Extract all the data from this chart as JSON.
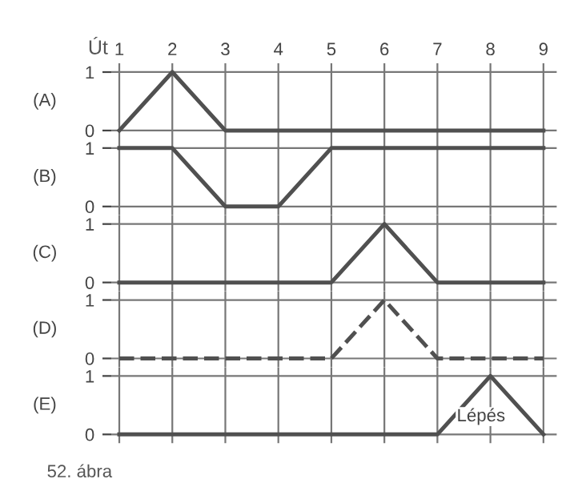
{
  "chart_data": [
    {
      "type": "line",
      "xlabel": "Út",
      "ylabel": "(A)",
      "x": [
        1,
        2,
        3,
        4,
        5,
        6,
        7,
        8,
        9
      ],
      "series": [
        {
          "color": "#505050",
          "values": [
            0,
            1,
            0,
            0,
            0,
            0,
            0,
            0,
            0
          ]
        }
      ],
      "xlim": [
        0.85,
        9.25
      ],
      "xticks": [
        1,
        2,
        3,
        4,
        5,
        6,
        7,
        8,
        9
      ],
      "ylim": [
        -0.15,
        1.15
      ],
      "yticks": [
        0,
        1
      ],
      "grid": true,
      "line_style": "solid",
      "marker": "none"
    },
    {
      "type": "line",
      "ylabel": "(B)",
      "x": [
        1,
        2,
        3,
        4,
        5,
        6,
        7,
        8,
        9
      ],
      "series": [
        {
          "color": "#505050",
          "values": [
            1,
            1,
            0,
            0,
            1,
            1,
            1,
            1,
            1
          ]
        }
      ],
      "xlim": [
        0.85,
        9.25
      ],
      "ylim": [
        -0.15,
        1.15
      ],
      "yticks": [
        0,
        1
      ],
      "tick_labels": "y",
      "grid": true,
      "line_style": "solid",
      "marker": "none"
    },
    {
      "type": "line",
      "ylabel": "(C)",
      "x": [
        1,
        2,
        3,
        4,
        5,
        6,
        7,
        8,
        9
      ],
      "series": [
        {
          "color": "#505050",
          "values": [
            0,
            0,
            0,
            0,
            0,
            1,
            0,
            0,
            0
          ]
        }
      ],
      "xlim": [
        0.85,
        9.25
      ],
      "ylim": [
        -0.15,
        1.15
      ],
      "yticks": [
        0,
        1
      ],
      "tick_labels": "y",
      "grid": true,
      "line_style": "solid",
      "marker": "none"
    },
    {
      "type": "line",
      "ylabel": "(D)",
      "x": [
        1,
        2,
        3,
        4,
        5,
        6,
        7,
        8,
        9
      ],
      "series": [
        {
          "color": "#505050",
          "values": [
            0,
            0,
            0,
            0,
            0,
            1,
            0,
            0,
            0
          ]
        }
      ],
      "xlim": [
        0.85,
        9.25
      ],
      "ylim": [
        -0.15,
        1.15
      ],
      "yticks": [
        0,
        1
      ],
      "tick_labels": "y",
      "grid": true,
      "line_style": "dashed",
      "marker": "none"
    },
    {
      "type": "line",
      "ylabel": "(E)",
      "x": [
        1,
        2,
        3,
        4,
        5,
        6,
        7,
        8,
        9
      ],
      "series": [
        {
          "color": "#505050",
          "values": [
            0,
            0,
            0,
            0,
            0,
            0,
            0,
            1,
            0
          ]
        }
      ],
      "xlim": [
        0.85,
        9.25
      ],
      "ylim": [
        -0.15,
        1.15
      ],
      "yticks": [
        0,
        1
      ],
      "tick_labels": "y",
      "grid": true,
      "line_style": "solid",
      "marker": "none",
      "annotations": [
        "Lépés",
        "52. ábra"
      ]
    }
  ]
}
